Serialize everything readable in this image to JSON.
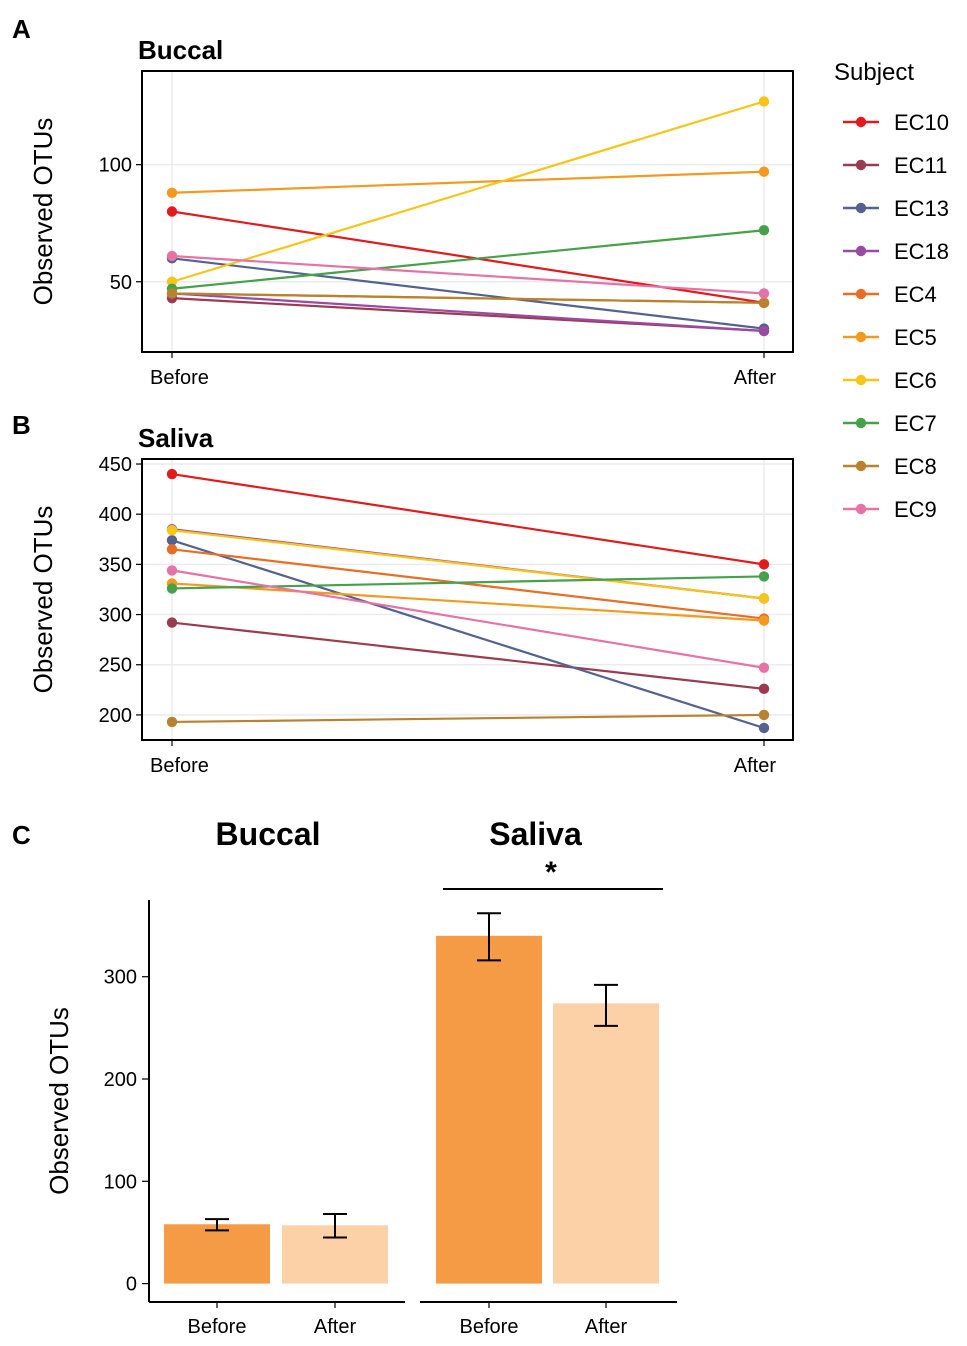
{
  "chart_data": [
    {
      "panel": "A",
      "type": "line",
      "title": "Buccal",
      "ylabel": "Observed OTUs",
      "xlabel": "",
      "categories": [
        "Before",
        "After"
      ],
      "yticks": [
        50,
        100
      ],
      "ylim": [
        20,
        140
      ],
      "grid": true,
      "series": [
        {
          "name": "EC10",
          "color": "#e31a1c",
          "values": [
            80,
            41
          ]
        },
        {
          "name": "EC11",
          "color": "#9b3b52",
          "values": [
            43,
            29
          ]
        },
        {
          "name": "EC13",
          "color": "#54628f",
          "values": [
            60,
            30
          ]
        },
        {
          "name": "EC18",
          "color": "#9b4aa3",
          "values": [
            45,
            29
          ]
        },
        {
          "name": "EC4",
          "color": "#e66f24",
          "values": [
            45,
            41
          ]
        },
        {
          "name": "EC5",
          "color": "#f39a1e",
          "values": [
            88,
            97
          ]
        },
        {
          "name": "EC6",
          "color": "#f5c518",
          "values": [
            50,
            127
          ]
        },
        {
          "name": "EC7",
          "color": "#45a14a",
          "values": [
            47,
            72
          ]
        },
        {
          "name": "EC8",
          "color": "#b8822e",
          "values": [
            45,
            41
          ]
        },
        {
          "name": "EC9",
          "color": "#e772a6",
          "values": [
            61,
            45
          ]
        }
      ]
    },
    {
      "panel": "B",
      "type": "line",
      "title": "Saliva",
      "ylabel": "Observed OTUs",
      "xlabel": "",
      "categories": [
        "Before",
        "After"
      ],
      "yticks": [
        200,
        250,
        300,
        350,
        400,
        450
      ],
      "ylim": [
        175,
        455
      ],
      "grid": true,
      "series": [
        {
          "name": "EC10",
          "color": "#e31a1c",
          "values": [
            440,
            350
          ]
        },
        {
          "name": "EC11",
          "color": "#9b3b52",
          "values": [
            292,
            226
          ]
        },
        {
          "name": "EC13",
          "color": "#54628f",
          "values": [
            374,
            187
          ]
        },
        {
          "name": "EC18",
          "color": "#9b4aa3",
          "values": [
            385,
            316
          ]
        },
        {
          "name": "EC4",
          "color": "#e66f24",
          "values": [
            365,
            296
          ]
        },
        {
          "name": "EC5",
          "color": "#f39a1e",
          "values": [
            331,
            294
          ]
        },
        {
          "name": "EC6",
          "color": "#f5c518",
          "values": [
            384,
            316
          ]
        },
        {
          "name": "EC7",
          "color": "#45a14a",
          "values": [
            326,
            338
          ]
        },
        {
          "name": "EC8",
          "color": "#b8822e",
          "values": [
            193,
            200
          ]
        },
        {
          "name": "EC9",
          "color": "#e772a6",
          "values": [
            344,
            247
          ]
        }
      ]
    },
    {
      "panel": "C",
      "type": "bar",
      "ylabel": "Observed OTUs",
      "yticks": [
        0,
        100,
        200,
        300
      ],
      "ylim": [
        -18,
        375
      ],
      "groups": [
        {
          "title": "Buccal",
          "categories": [
            "Before",
            "After"
          ],
          "values": [
            58,
            57
          ],
          "errors": [
            [
              52,
              63
            ],
            [
              45,
              68
            ]
          ],
          "colors": [
            "#f59a45",
            "#fdd1a8"
          ],
          "significance": ""
        },
        {
          "title": "Saliva",
          "categories": [
            "Before",
            "After"
          ],
          "values": [
            340,
            274
          ],
          "errors": [
            [
              316,
              362
            ],
            [
              252,
              292
            ]
          ],
          "colors": [
            "#f59a45",
            "#fdd1a8"
          ],
          "significance": "*"
        }
      ]
    }
  ],
  "panels": {
    "a": "A",
    "b": "B",
    "c": "C"
  },
  "legend": {
    "title": "Subject"
  }
}
